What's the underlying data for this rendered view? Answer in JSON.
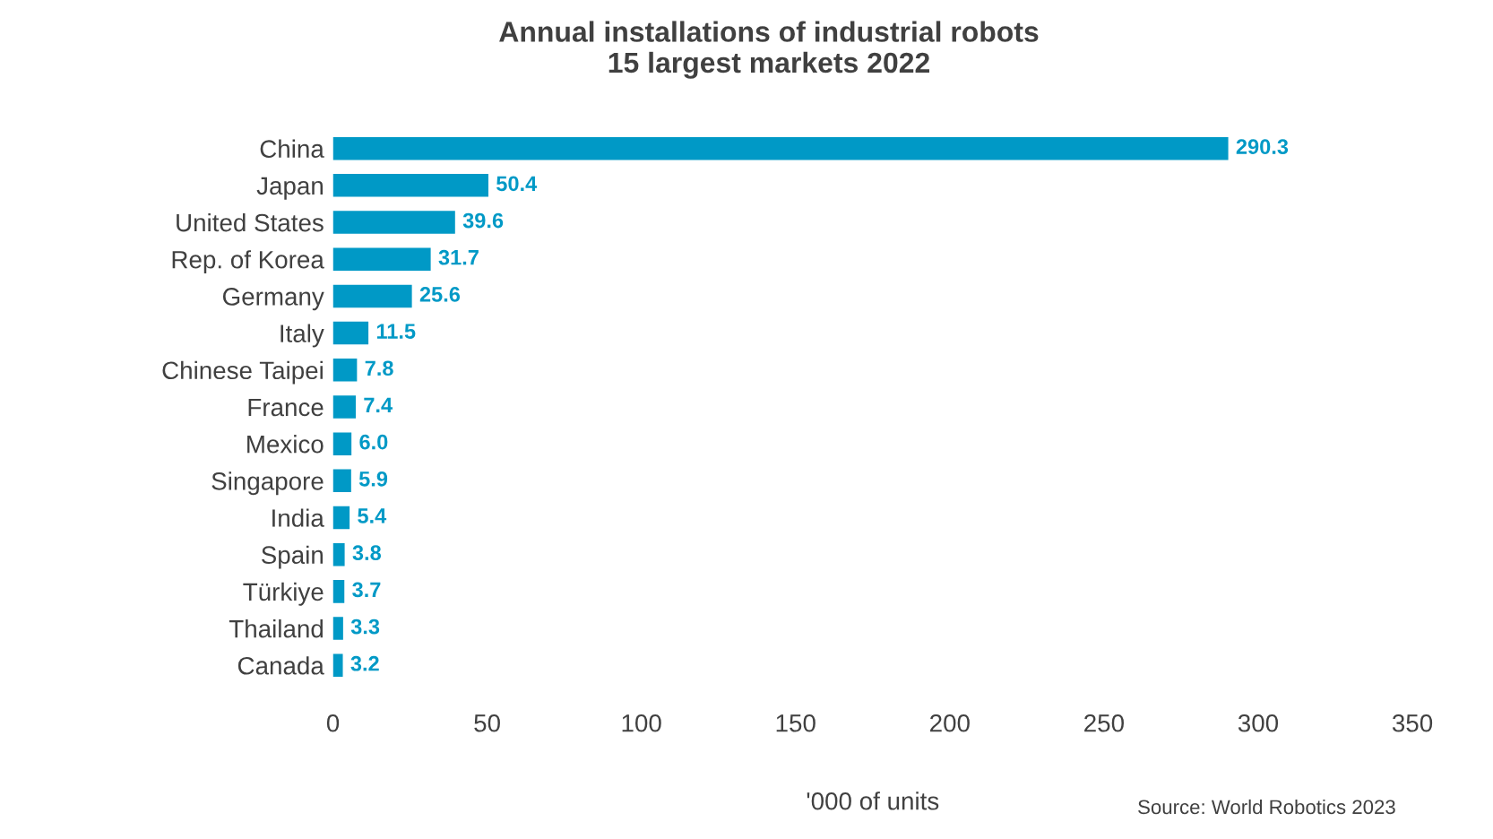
{
  "chart_data": {
    "type": "bar",
    "orientation": "horizontal",
    "title": "Annual installations of industrial robots\n15 largest markets 2022",
    "categories": [
      "China",
      "Japan",
      "United States",
      "Rep. of Korea",
      "Germany",
      "Italy",
      "Chinese Taipei",
      "France",
      "Mexico",
      "Singapore",
      "India",
      "Spain",
      "Türkiye",
      "Thailand",
      "Canada"
    ],
    "values": [
      290.3,
      50.4,
      39.6,
      31.7,
      25.6,
      11.5,
      7.8,
      7.4,
      6.0,
      5.9,
      5.4,
      3.8,
      3.7,
      3.3,
      3.2
    ],
    "value_labels": [
      "290.3",
      "50.4",
      "39.6",
      "31.7",
      "25.6",
      "11.5",
      "7.8",
      "7.4",
      "6.0",
      "5.9",
      "5.4",
      "3.8",
      "3.7",
      "3.3",
      "3.2"
    ],
    "color": "#0099c6",
    "xlim": [
      0,
      350
    ],
    "xticks": [
      0,
      50,
      100,
      150,
      200,
      250,
      300,
      350
    ],
    "xlabel": "'000 of units",
    "grid": false,
    "annotations": [
      "Source: World Robotics 2023"
    ]
  }
}
